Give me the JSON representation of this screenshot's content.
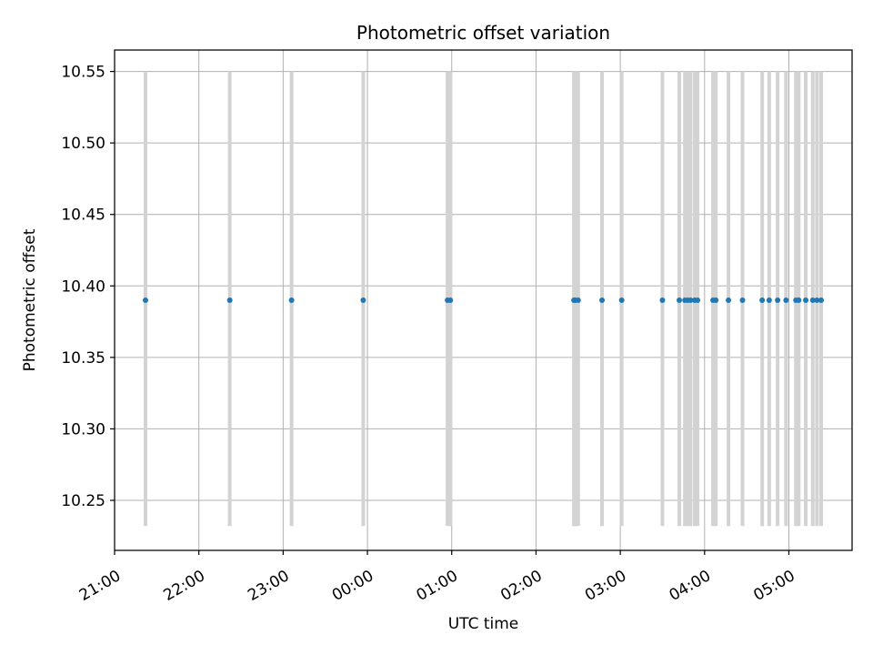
{
  "chart_data": {
    "type": "scatter",
    "title": "Photometric offset variation",
    "xlabel": "UTC time",
    "ylabel": "Photometric offset",
    "xlim": [
      "21:00",
      "05:45"
    ],
    "ylim": [
      10.215,
      10.565
    ],
    "grid": true,
    "x_ticks": [
      "21:00",
      "22:00",
      "23:00",
      "00:00",
      "01:00",
      "02:00",
      "03:00",
      "04:00",
      "05:00"
    ],
    "y_ticks": [
      "10.25",
      "10.30",
      "10.35",
      "10.40",
      "10.45",
      "10.50",
      "10.55"
    ],
    "error_range": [
      10.232,
      10.55
    ],
    "point_color": "#1f77b4",
    "errorbar_color": "#d3d3d3",
    "series": [
      {
        "x": [
          "21:22",
          "22:22",
          "23:06",
          "23:57",
          "00:57",
          "00:59",
          "02:27",
          "02:28",
          "02:30",
          "02:47",
          "03:01",
          "03:30",
          "03:42",
          "03:46",
          "03:48",
          "03:50",
          "03:53",
          "03:55",
          "04:06",
          "04:08",
          "04:17",
          "04:27",
          "04:41",
          "04:46",
          "04:52",
          "04:58",
          "05:05",
          "05:07",
          "05:12",
          "05:17",
          "05:20",
          "05:23"
        ],
        "y": [
          10.39,
          10.39,
          10.39,
          10.39,
          10.39,
          10.39,
          10.39,
          10.39,
          10.39,
          10.39,
          10.39,
          10.39,
          10.39,
          10.39,
          10.39,
          10.39,
          10.39,
          10.39,
          10.39,
          10.39,
          10.39,
          10.39,
          10.39,
          10.39,
          10.39,
          10.39,
          10.39,
          10.39,
          10.39,
          10.39,
          10.39,
          10.39
        ]
      }
    ]
  }
}
